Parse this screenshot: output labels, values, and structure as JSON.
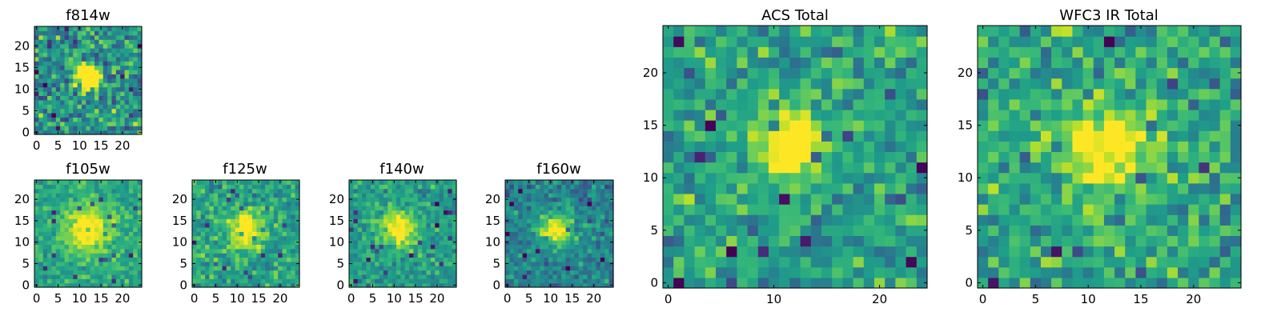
{
  "chart_data": [
    {
      "type": "heatmap",
      "title": "f814w",
      "size": 25,
      "xticks": [
        0,
        5,
        10,
        15,
        20
      ],
      "yticks": [
        0,
        5,
        10,
        15,
        20
      ],
      "peak": [
        12,
        13
      ],
      "seed": 11,
      "width": 2.0,
      "noise": 0.2,
      "amp": 1.0,
      "base": 0.5,
      "grid_range": [
        0,
        24
      ]
    },
    {
      "type": "heatmap",
      "title": "f105w",
      "size": 25,
      "xticks": [
        0,
        5,
        10,
        15,
        20
      ],
      "yticks": [
        0,
        5,
        10,
        15,
        20
      ],
      "peak": [
        12,
        13
      ],
      "seed": 23,
      "width": 3.5,
      "noise": 0.1,
      "amp": 0.55,
      "base": 0.6,
      "grid_range": [
        0,
        24
      ]
    },
    {
      "type": "heatmap",
      "title": "f125w",
      "size": 25,
      "xticks": [
        0,
        5,
        10,
        15,
        20
      ],
      "yticks": [
        0,
        5,
        10,
        15,
        20
      ],
      "peak": [
        12,
        13
      ],
      "seed": 37,
      "width": 3.0,
      "noise": 0.13,
      "amp": 0.5,
      "base": 0.58,
      "grid_range": [
        0,
        24
      ]
    },
    {
      "type": "heatmap",
      "title": "f140w",
      "size": 25,
      "xticks": [
        0,
        5,
        10,
        15,
        20
      ],
      "yticks": [
        0,
        5,
        10,
        15,
        20
      ],
      "peak": [
        11,
        13
      ],
      "seed": 41,
      "width": 3.0,
      "noise": 0.11,
      "amp": 0.5,
      "base": 0.55,
      "grid_range": [
        0,
        24
      ]
    },
    {
      "type": "heatmap",
      "title": "f160w",
      "size": 25,
      "xticks": [
        0,
        5,
        10,
        15,
        20
      ],
      "yticks": [
        0,
        5,
        10,
        15,
        20
      ],
      "peak": [
        11,
        13
      ],
      "seed": 53,
      "width": 2.8,
      "noise": 0.12,
      "amp": 0.55,
      "base": 0.45,
      "grid_range": [
        0,
        24
      ]
    },
    {
      "type": "heatmap",
      "title": "ACS Total",
      "size": 25,
      "xticks": [
        0,
        10,
        20
      ],
      "yticks": [
        0,
        5,
        10,
        15,
        20
      ],
      "peak": [
        11.5,
        13
      ],
      "seed": 67,
      "width": 2.4,
      "noise": 0.15,
      "amp": 0.6,
      "base": 0.58,
      "grid_range": [
        0,
        24
      ]
    },
    {
      "type": "heatmap",
      "title": "WFC3 IR Total",
      "size": 25,
      "xticks": [
        0,
        5,
        10,
        15,
        20
      ],
      "yticks": [
        0,
        5,
        10,
        15,
        20
      ],
      "peak": [
        12,
        13
      ],
      "seed": 79,
      "width": 2.6,
      "noise": 0.16,
      "amp": 0.55,
      "base": 0.6,
      "grid_range": [
        0,
        24
      ]
    }
  ],
  "colormap": [
    "#440154",
    "#482878",
    "#3e4989",
    "#31688e",
    "#26828e",
    "#1f9e89",
    "#35b779",
    "#6ece58",
    "#b5de2b",
    "#fde725"
  ]
}
